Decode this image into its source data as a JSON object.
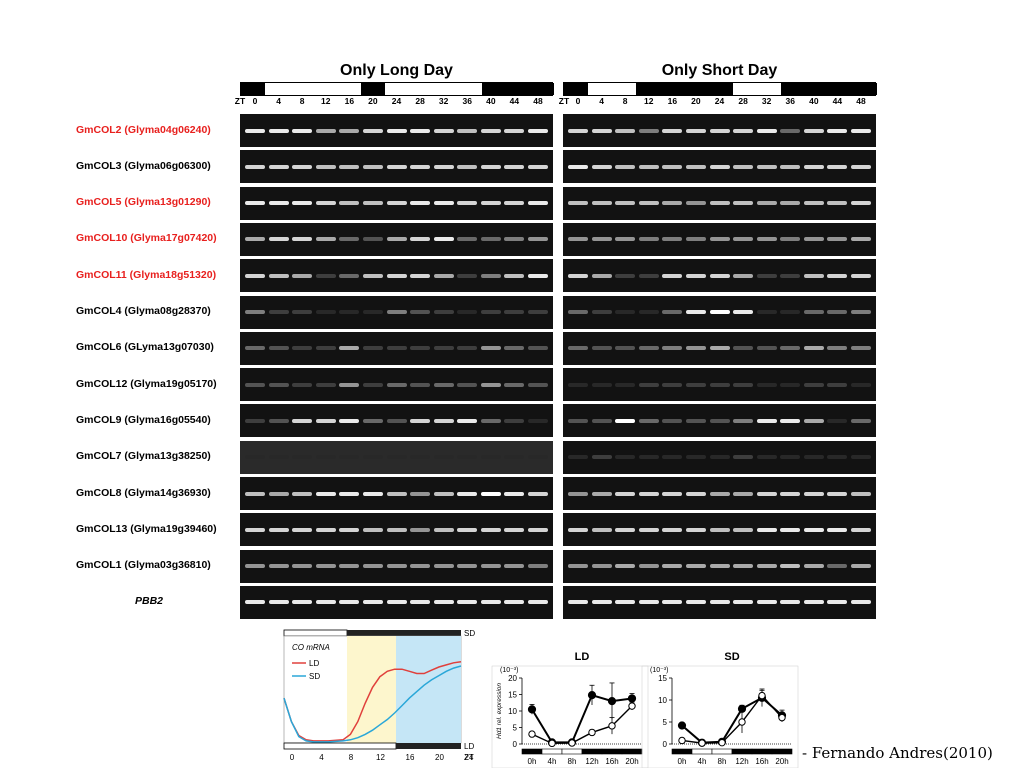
{
  "figure": {
    "long_day_title": "Only Long Day",
    "short_day_title": "Only Short Day",
    "zt_label": "ZT",
    "long_day_zt": [
      "0",
      "4",
      "8",
      "12",
      "16",
      "20",
      "24",
      "28",
      "32",
      "36",
      "40",
      "44",
      "48"
    ],
    "short_day_zt": [
      "0",
      "4",
      "8",
      "12",
      "16",
      "20",
      "24",
      "28",
      "32",
      "36",
      "40",
      "44",
      "48"
    ],
    "genes": [
      {
        "label": "GmCOL2 (Glyma04g06240)",
        "color": "red"
      },
      {
        "label": "GmCOL3 (Glyma06g06300)",
        "color": "black"
      },
      {
        "label": "GmCOL5 (Glyma13g01290)",
        "color": "red"
      },
      {
        "label": "GmCOL10 (Glyma17g07420)",
        "color": "red"
      },
      {
        "label": "GmCOL11 (Glyma18g51320)",
        "color": "red"
      },
      {
        "label": "GmCOL4 (Glyma08g28370)",
        "color": "black"
      },
      {
        "label": "GmCOL6 (GLyma13g07030)",
        "color": "black"
      },
      {
        "label": "GmCOL12 (Glyma19g05170)",
        "color": "black"
      },
      {
        "label": "GmCOL9 (Glyma16g05540)",
        "color": "black"
      },
      {
        "label": "GmCOL7 (Glyma13g38250)",
        "color": "black"
      },
      {
        "label": "GmCOL8 (Glyma14g36930)",
        "color": "black"
      },
      {
        "label": "GmCOL13 (Glyma19g39460)",
        "color": "black"
      },
      {
        "label": "GmCOL1 (Glyma03g36810)",
        "color": "black"
      },
      {
        "label": "PBB2",
        "color": "black",
        "italic": true
      }
    ],
    "band_intensity_long_day": [
      [
        0.9,
        0.9,
        0.9,
        0.6,
        0.6,
        0.8,
        0.9,
        0.9,
        0.8,
        0.7,
        0.8,
        0.8,
        0.9
      ],
      [
        0.8,
        0.8,
        0.8,
        0.7,
        0.7,
        0.7,
        0.8,
        0.8,
        0.8,
        0.7,
        0.8,
        0.8,
        0.8
      ],
      [
        0.9,
        0.9,
        0.9,
        0.8,
        0.7,
        0.7,
        0.8,
        0.9,
        0.9,
        0.8,
        0.8,
        0.8,
        0.9
      ],
      [
        0.6,
        0.8,
        0.8,
        0.6,
        0.3,
        0.2,
        0.6,
        0.8,
        0.9,
        0.3,
        0.3,
        0.4,
        0.5
      ],
      [
        0.8,
        0.7,
        0.6,
        0.1,
        0.3,
        0.7,
        0.8,
        0.8,
        0.6,
        0.1,
        0.4,
        0.7,
        0.9
      ],
      [
        0.4,
        0.1,
        0.1,
        0.0,
        0.0,
        0.0,
        0.4,
        0.2,
        0.1,
        0.0,
        0.1,
        0.1,
        0.1
      ],
      [
        0.3,
        0.2,
        0.1,
        0.1,
        0.6,
        0.1,
        0.1,
        0.1,
        0.1,
        0.1,
        0.5,
        0.3,
        0.2
      ],
      [
        0.2,
        0.2,
        0.1,
        0.1,
        0.5,
        0.1,
        0.3,
        0.2,
        0.3,
        0.2,
        0.5,
        0.3,
        0.2
      ],
      [
        0.1,
        0.2,
        0.8,
        0.8,
        0.9,
        0.3,
        0.2,
        0.8,
        0.8,
        0.9,
        0.3,
        0.1,
        0.0
      ],
      [
        0.0,
        0.0,
        0.0,
        0.0,
        0.0,
        0.0,
        0.0,
        0.0,
        0.0,
        0.0,
        0.0,
        0.0,
        0.0
      ],
      [
        0.7,
        0.6,
        0.7,
        0.9,
        0.9,
        0.9,
        0.7,
        0.5,
        0.7,
        0.9,
        1.0,
        0.9,
        0.8
      ],
      [
        0.8,
        0.8,
        0.8,
        0.8,
        0.8,
        0.7,
        0.7,
        0.5,
        0.7,
        0.8,
        0.8,
        0.8,
        0.8
      ],
      [
        0.5,
        0.5,
        0.5,
        0.5,
        0.5,
        0.5,
        0.5,
        0.5,
        0.5,
        0.5,
        0.5,
        0.5,
        0.4
      ],
      [
        0.9,
        0.9,
        0.9,
        0.9,
        0.9,
        0.9,
        0.9,
        0.9,
        0.9,
        0.9,
        0.9,
        0.9,
        0.9
      ]
    ],
    "band_intensity_short_day": [
      [
        0.8,
        0.8,
        0.7,
        0.4,
        0.8,
        0.8,
        0.8,
        0.8,
        0.9,
        0.3,
        0.8,
        0.9,
        0.9
      ],
      [
        0.9,
        0.8,
        0.7,
        0.7,
        0.7,
        0.7,
        0.8,
        0.7,
        0.7,
        0.7,
        0.8,
        0.8,
        0.8
      ],
      [
        0.7,
        0.7,
        0.7,
        0.7,
        0.6,
        0.5,
        0.7,
        0.7,
        0.6,
        0.6,
        0.7,
        0.7,
        0.8
      ],
      [
        0.5,
        0.5,
        0.5,
        0.4,
        0.4,
        0.4,
        0.5,
        0.5,
        0.5,
        0.4,
        0.5,
        0.5,
        0.6
      ],
      [
        0.8,
        0.6,
        0.1,
        0.1,
        0.8,
        0.8,
        0.8,
        0.6,
        0.1,
        0.1,
        0.7,
        0.8,
        0.8
      ],
      [
        0.3,
        0.1,
        0.0,
        0.0,
        0.3,
        0.9,
        1.0,
        0.9,
        0.0,
        0.0,
        0.3,
        0.3,
        0.4
      ],
      [
        0.3,
        0.2,
        0.2,
        0.3,
        0.4,
        0.5,
        0.6,
        0.2,
        0.2,
        0.3,
        0.6,
        0.4,
        0.4
      ],
      [
        0.0,
        0.0,
        0.0,
        0.1,
        0.1,
        0.1,
        0.1,
        0.1,
        0.0,
        0.0,
        0.1,
        0.1,
        0.0
      ],
      [
        0.2,
        0.2,
        1.0,
        0.3,
        0.2,
        0.2,
        0.2,
        0.4,
        0.9,
        0.9,
        0.6,
        0.0,
        0.3
      ],
      [
        0.0,
        0.1,
        0.0,
        0.0,
        0.0,
        0.0,
        0.0,
        0.1,
        0.0,
        0.0,
        0.0,
        0.0,
        0.0
      ],
      [
        0.5,
        0.6,
        0.8,
        0.8,
        0.8,
        0.8,
        0.6,
        0.6,
        0.8,
        0.8,
        0.8,
        0.8,
        0.7
      ],
      [
        0.8,
        0.7,
        0.8,
        0.8,
        0.8,
        0.8,
        0.7,
        0.7,
        0.9,
        0.9,
        0.9,
        0.9,
        0.8
      ],
      [
        0.5,
        0.5,
        0.6,
        0.5,
        0.6,
        0.6,
        0.6,
        0.6,
        0.6,
        0.7,
        0.6,
        0.3,
        0.6
      ],
      [
        0.9,
        0.9,
        0.9,
        0.9,
        0.9,
        0.9,
        0.9,
        0.9,
        0.9,
        0.9,
        0.9,
        0.9,
        0.9
      ]
    ],
    "long_day_light_pattern": [
      "dark",
      "light",
      "light",
      "light",
      "light",
      "dark",
      "light",
      "light",
      "light",
      "light",
      "dark",
      "dark",
      "dark"
    ],
    "short_day_light_pattern": [
      "dark",
      "light",
      "light",
      "dark",
      "dark",
      "dark",
      "dark",
      "light",
      "light",
      "dark",
      "dark",
      "dark",
      "dark"
    ]
  },
  "citation": "- Fernando Andres(2010)",
  "chart_data": [
    {
      "type": "line",
      "legend_title": "CO mRNA",
      "series": [
        {
          "name": "LD",
          "color": "#e0403c",
          "x": [
            0,
            1,
            2,
            3,
            4,
            6,
            8,
            9,
            10,
            11,
            12,
            13,
            14,
            15,
            16,
            17,
            18,
            19,
            20,
            21,
            22,
            23,
            24
          ],
          "y": [
            0.42,
            0.2,
            0.07,
            0.03,
            0.02,
            0.02,
            0.03,
            0.08,
            0.2,
            0.37,
            0.52,
            0.62,
            0.67,
            0.69,
            0.69,
            0.67,
            0.65,
            0.65,
            0.68,
            0.71,
            0.73,
            0.75,
            0.76
          ]
        },
        {
          "name": "SD",
          "color": "#2aa7d8",
          "x": [
            0,
            1,
            2,
            3,
            4,
            6,
            8,
            9,
            10,
            11,
            12,
            13,
            14,
            15,
            16,
            17,
            18,
            19,
            20,
            21,
            22,
            23,
            24
          ],
          "y": [
            0.42,
            0.2,
            0.06,
            0.02,
            0.01,
            0.01,
            0.02,
            0.03,
            0.05,
            0.08,
            0.12,
            0.17,
            0.22,
            0.28,
            0.35,
            0.42,
            0.48,
            0.54,
            0.59,
            0.63,
            0.67,
            0.7,
            0.72
          ]
        }
      ],
      "x_ticks": [
        "0",
        "4",
        "8",
        "12",
        "16",
        "20",
        "24"
      ],
      "x_tick_label_end": "ZT",
      "top_bar_label": "SD",
      "bottom_bar_label": "LD",
      "xlim": [
        0,
        24
      ],
      "ylim": [
        0,
        1
      ]
    },
    {
      "type": "line",
      "title": "LD",
      "ylabel": "Hd1 rel. expression",
      "yscale_label": "(10⁻³)",
      "categories": [
        "0h",
        "4h",
        "8h",
        "12h",
        "16h",
        "20h"
      ],
      "yticks": [
        "0",
        "5",
        "10",
        "15",
        "20"
      ],
      "ylim": [
        0,
        20
      ],
      "series": [
        {
          "marker": "filled",
          "values": [
            10.5,
            0.5,
            0.5,
            14.8,
            13,
            13.8
          ],
          "err": [
            1.5,
            0.3,
            0.3,
            3,
            5.5,
            1.5
          ]
        },
        {
          "marker": "open",
          "values": [
            3,
            0.2,
            0.3,
            3.5,
            5.5,
            11.5
          ],
          "err": [
            0.6,
            0.2,
            0.2,
            0.8,
            2.5,
            1.2
          ]
        }
      ]
    },
    {
      "type": "line",
      "title": "SD",
      "yscale_label": "(10⁻³)",
      "categories": [
        "0h",
        "4h",
        "8h",
        "12h",
        "16h",
        "20h"
      ],
      "yticks": [
        "0",
        "5",
        "10",
        "15"
      ],
      "ylim": [
        0,
        15
      ],
      "series": [
        {
          "marker": "filled",
          "values": [
            4.2,
            0.3,
            0.5,
            8,
            10.5,
            6.5
          ],
          "err": [
            0.5,
            0.2,
            0.2,
            0.8,
            2,
            1.2
          ]
        },
        {
          "marker": "open",
          "values": [
            0.8,
            0.2,
            0.3,
            5,
            11,
            6
          ],
          "err": [
            0.3,
            0.2,
            0.2,
            2.5,
            1.2,
            1
          ]
        }
      ]
    }
  ]
}
